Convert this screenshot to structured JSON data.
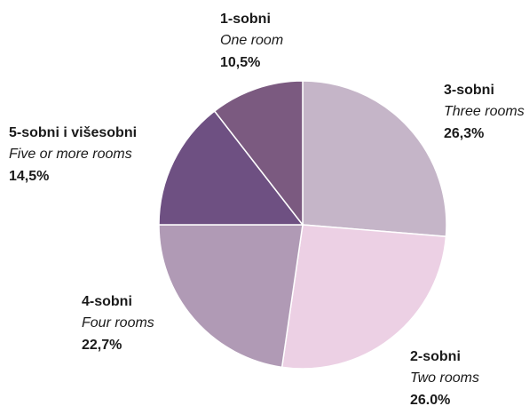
{
  "chart_data": {
    "type": "pie",
    "categories": [
      "3-sobni",
      "2-sobni",
      "4-sobni",
      "5-sobni i višesobni",
      "1-sobni"
    ],
    "subtitles": [
      "Three rooms",
      "Two rooms",
      "Four rooms",
      "Five or more rooms",
      "One room"
    ],
    "values": [
      26.3,
      26.0,
      22.7,
      14.5,
      10.5
    ],
    "value_labels": [
      "26,3%",
      "26.0%",
      "22,7%",
      "14,5%",
      "10,5%"
    ],
    "colors": [
      "#c5b5c8",
      "#ecceе4",
      "#b09ab5",
      "#6e5082",
      "#7b5a80"
    ]
  }
}
